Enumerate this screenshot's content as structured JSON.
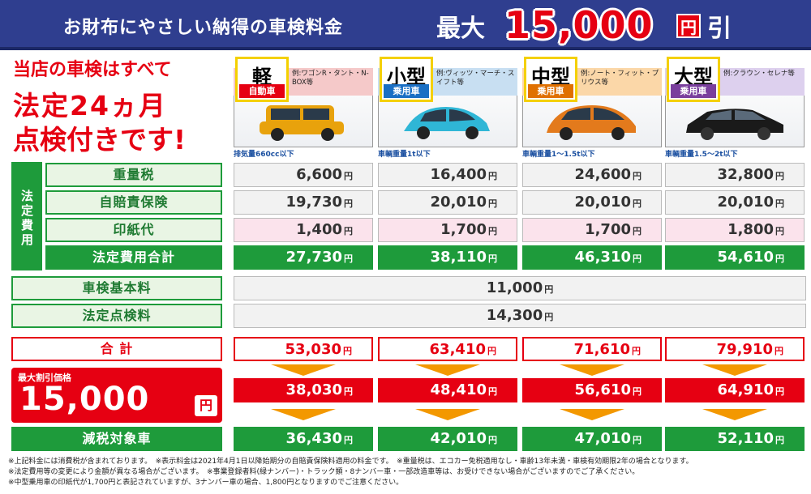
{
  "header": {
    "title": "お財布にやさしい納得の車検料金",
    "max_label": "最大",
    "amount": "15,000",
    "yen": "円",
    "discount": "引"
  },
  "headline": {
    "line1": "当店の車検はすべて",
    "line2": "法定24ヵ月",
    "line3": "点検付きです!"
  },
  "cars": [
    {
      "class": "軽",
      "type": "自動車",
      "example": "例:ワゴンR・タント・N-BOX等",
      "weight": "排気量660cc以下",
      "color": "#e8a20c"
    },
    {
      "class": "小型",
      "type": "乗用車",
      "example": "例:ヴィッツ・マーチ・スイフト等",
      "weight": "車輌重量1t以下",
      "color": "#2fb6d6"
    },
    {
      "class": "中型",
      "type": "乗用車",
      "example": "例:ノート・フィット・プリウス等",
      "weight": "車輌重量1〜1.5t以下",
      "color": "#e37a1c"
    },
    {
      "class": "大型",
      "type": "乗用車",
      "example": "例:クラウン・セレナ等",
      "weight": "車輌重量1.5〜2t以下",
      "color": "#1a1a1a"
    }
  ],
  "table": {
    "side_label": "法定費用",
    "yen": "円",
    "rows": [
      {
        "label": "重量税",
        "values": [
          "6,600",
          "16,400",
          "24,600",
          "32,800"
        ]
      },
      {
        "label": "自賠責保険",
        "values": [
          "19,730",
          "20,010",
          "20,010",
          "20,010"
        ]
      },
      {
        "label": "印紙代",
        "values": [
          "1,400",
          "1,700",
          "1,700",
          "1,800"
        ]
      },
      {
        "label": "法定費用合計",
        "values": [
          "27,730",
          "38,110",
          "46,310",
          "54,610"
        ]
      }
    ],
    "basic_fee": {
      "label": "車検基本料",
      "value": "11,000"
    },
    "inspection_fee": {
      "label": "法定点検料",
      "value": "14,300"
    },
    "total": {
      "label": "合 計",
      "values": [
        "53,030",
        "63,410",
        "71,610",
        "79,910"
      ]
    },
    "discounted": {
      "values": [
        "38,030",
        "48,410",
        "56,610",
        "64,910"
      ]
    },
    "discount_box": {
      "label": "最大割引価格",
      "amount": "15,000",
      "yen": "円"
    },
    "tax_reduced": {
      "label": "減税対象車",
      "values": [
        "36,430",
        "42,010",
        "47,010",
        "52,110"
      ]
    }
  },
  "notes": [
    "※上記料金には消費税が含まれております。　※表示料金は2021年4月1日以降始期分の自賠責保険料適用の料金です。　※重量税は、エコカー免税適用なし・車齢13年未満・車検有効期限2年の場合となります。",
    "※法定費用等の変更により金額が異なる場合がございます。　※事業登録者料(緑ナンバー)・トラック類・8ナンバー車・一部改造車等は、お受けできない場合がございますのでご了承ください。",
    "※中型乗用車の印紙代が1,700円と表記されていますが、3ナンバー車の場合、1,800円となりますのでご注意ください。"
  ]
}
